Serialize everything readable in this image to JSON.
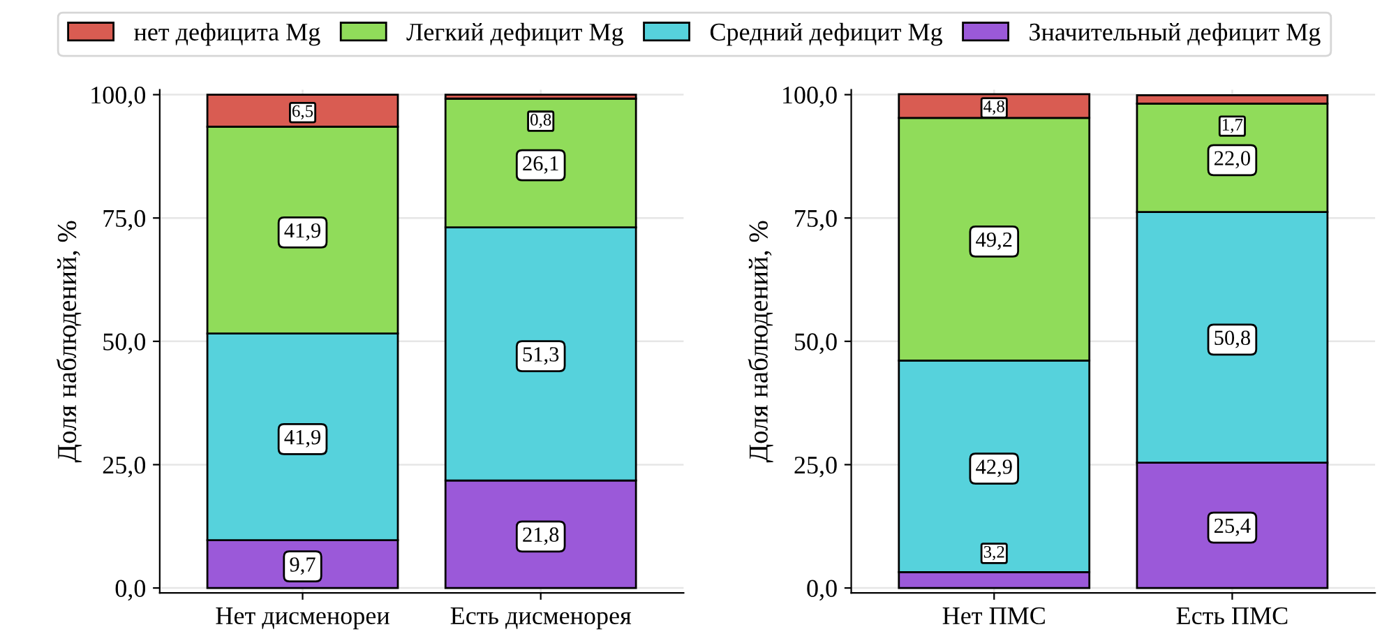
{
  "chart_data": [
    {
      "type": "bar",
      "stacked": true,
      "ylabel": "Доля наблюдений, %",
      "categories": [
        "Нет дисменореи",
        "Есть дисменорея"
      ],
      "ylim": [
        -1,
        101
      ],
      "yticks": [
        {
          "value": 0,
          "label": "0,0"
        },
        {
          "value": 25,
          "label": "25,0"
        },
        {
          "value": 50,
          "label": "50,0"
        },
        {
          "value": 75,
          "label": "75,0"
        },
        {
          "value": 100,
          "label": "100,0"
        }
      ],
      "grid": true,
      "legend": "top",
      "series": [
        {
          "name": "Значительный дефицит Mg",
          "color": "#9b59d9",
          "values": [
            9.7,
            21.8
          ],
          "value_labels": [
            "9,7",
            "21,8"
          ]
        },
        {
          "name": "Средний дефицит Mg",
          "color": "#56d2dc",
          "values": [
            41.9,
            51.3
          ],
          "value_labels": [
            "41,9",
            "51,3"
          ]
        },
        {
          "name": "Легкий дефицит Mg",
          "color": "#90dc5a",
          "values": [
            41.9,
            26.1
          ],
          "value_labels": [
            "41,9",
            "26,1"
          ]
        },
        {
          "name": "нет дефицита Mg",
          "color": "#d95c52",
          "values": [
            6.5,
            0.8
          ],
          "value_labels": [
            "6,5",
            "0,8"
          ]
        }
      ]
    },
    {
      "type": "bar",
      "stacked": true,
      "ylabel": "Доля наблюдений, %",
      "categories": [
        "Нет ПМС",
        "Есть ПМС"
      ],
      "ylim": [
        -1,
        101
      ],
      "yticks": [
        {
          "value": 0,
          "label": "0,0"
        },
        {
          "value": 25,
          "label": "25,0"
        },
        {
          "value": 50,
          "label": "50,0"
        },
        {
          "value": 75,
          "label": "75,0"
        },
        {
          "value": 100,
          "label": "100,0"
        }
      ],
      "grid": true,
      "series": [
        {
          "name": "Значительный дефицит Mg",
          "color": "#9b59d9",
          "values": [
            3.2,
            25.4
          ],
          "value_labels": [
            "3,2",
            "25,4"
          ]
        },
        {
          "name": "Средний дефицит Mg",
          "color": "#56d2dc",
          "values": [
            42.9,
            50.8
          ],
          "value_labels": [
            "42,9",
            "50,8"
          ]
        },
        {
          "name": "Легкий дефицит Mg",
          "color": "#90dc5a",
          "values": [
            49.2,
            22.0
          ],
          "value_labels": [
            "49,2",
            "22,0"
          ]
        },
        {
          "name": "нет дефицита Mg",
          "color": "#d95c52",
          "values": [
            4.8,
            1.7
          ],
          "value_labels": [
            "4,8",
            "1,7"
          ]
        }
      ]
    }
  ]
}
